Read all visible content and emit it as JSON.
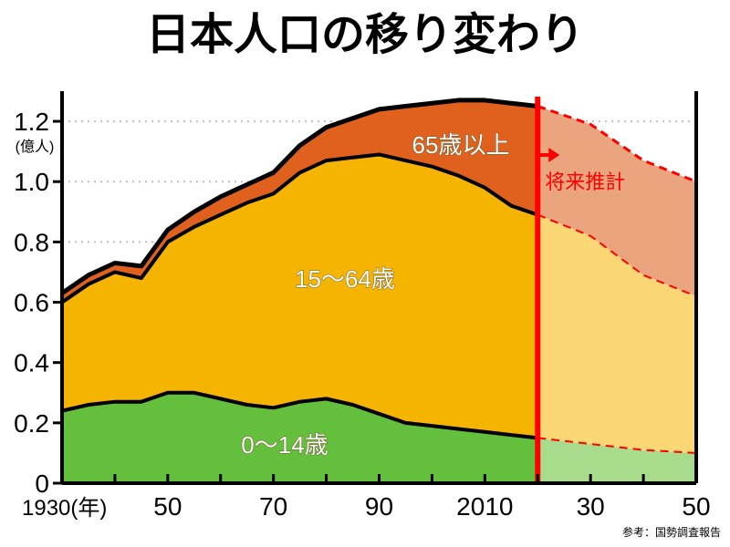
{
  "chart_data": {
    "type": "area",
    "title": "日本人口の移り変わり",
    "ylabel": "(億人)",
    "x_first_label": "1930(年)",
    "x_tick_labels": [
      "1930(年)",
      "50",
      "70",
      "90",
      "2010",
      "30",
      "50"
    ],
    "y_tick_labels": [
      "0",
      "0.2",
      "0.4",
      "0.6",
      "0.8",
      "1.0",
      "1.2"
    ],
    "xlim": [
      1930,
      2050
    ],
    "ylim": [
      0,
      1.3
    ],
    "stacked": true,
    "x": [
      1930,
      1935,
      1940,
      1945,
      1950,
      1955,
      1960,
      1965,
      1970,
      1975,
      1980,
      1985,
      1990,
      1995,
      2000,
      2005,
      2010,
      2015,
      2020
    ],
    "series": [
      {
        "name": "0〜14歳",
        "color": "#63bf3c",
        "values": [
          0.24,
          0.26,
          0.27,
          0.27,
          0.3,
          0.3,
          0.28,
          0.26,
          0.25,
          0.27,
          0.28,
          0.26,
          0.23,
          0.2,
          0.19,
          0.18,
          0.17,
          0.16,
          0.15
        ]
      },
      {
        "name": "15〜64歳",
        "color": "#f5b400",
        "values": [
          0.36,
          0.4,
          0.43,
          0.41,
          0.5,
          0.55,
          0.61,
          0.67,
          0.71,
          0.76,
          0.79,
          0.82,
          0.86,
          0.87,
          0.86,
          0.84,
          0.81,
          0.76,
          0.74
        ]
      },
      {
        "name": "65歳以上",
        "color": "#e0601e",
        "values": [
          0.03,
          0.03,
          0.03,
          0.04,
          0.04,
          0.05,
          0.06,
          0.06,
          0.07,
          0.09,
          0.11,
          0.13,
          0.15,
          0.18,
          0.21,
          0.25,
          0.29,
          0.34,
          0.36
        ]
      }
    ],
    "projection": {
      "label": "将来推計",
      "start_year": 2020,
      "x": [
        2020,
        2030,
        2040,
        2050
      ],
      "series": [
        {
          "name": "0〜14歳",
          "color": "#a8dc8c",
          "values": [
            0.15,
            0.13,
            0.11,
            0.1
          ]
        },
        {
          "name": "15〜64歳",
          "color": "#fad774",
          "values": [
            0.74,
            0.69,
            0.58,
            0.52
          ]
        },
        {
          "name": "65歳以上",
          "color": "#eaa57f",
          "values": [
            0.36,
            0.37,
            0.38,
            0.38
          ]
        }
      ],
      "line_color": "#ff0000"
    },
    "grid": true,
    "grid_style": "dotted"
  },
  "source_note": "参考：国勢調査報告"
}
